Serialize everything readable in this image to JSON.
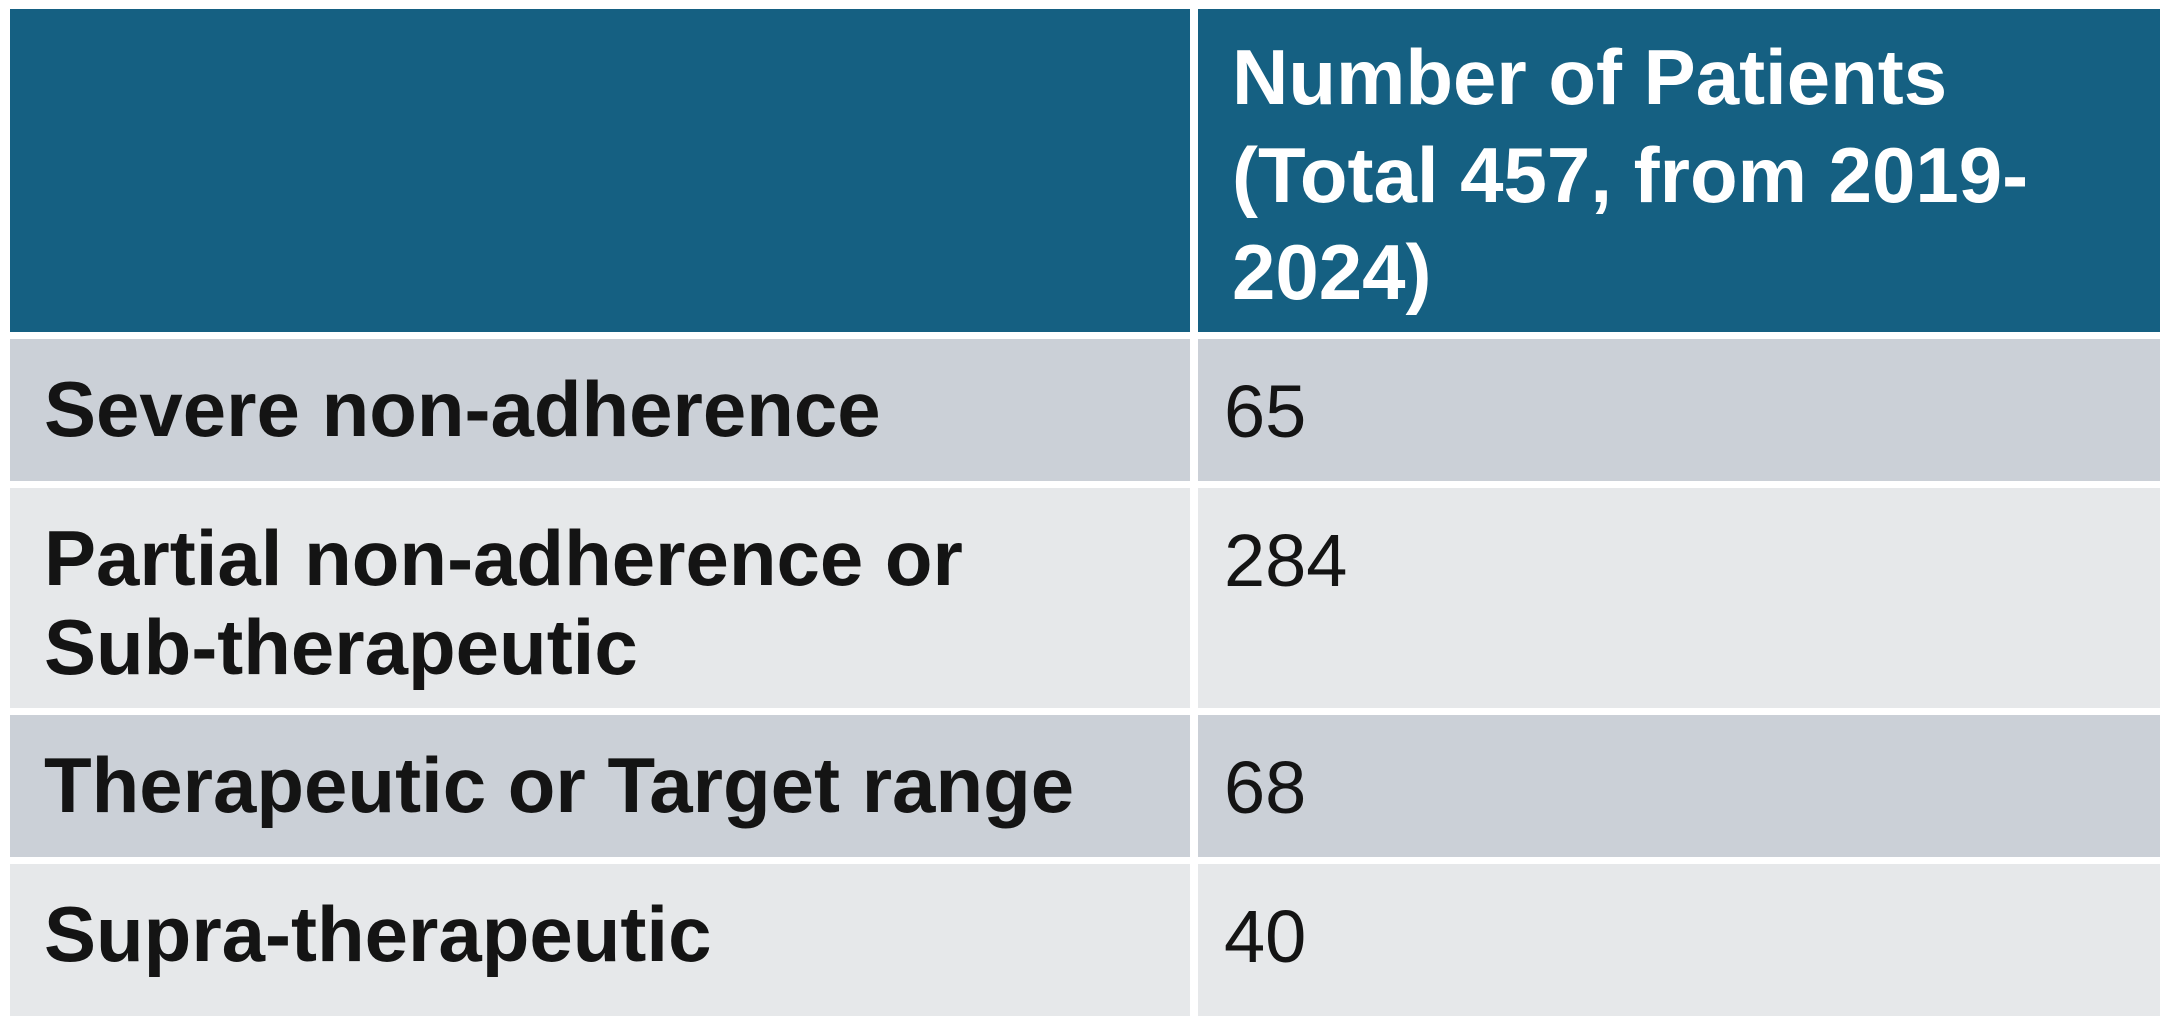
{
  "table": {
    "header_col1": "",
    "header_col2": "Number of Patients (Total 457, from 2019-2024)",
    "rows": [
      {
        "label": "Severe non-adherence",
        "value": "65"
      },
      {
        "label": "Partial non-adherence or Sub-therapeutic",
        "value": "284"
      },
      {
        "label": "Therapeutic or Target range",
        "value": "68"
      },
      {
        "label": "Supra-therapeutic",
        "value": "40"
      }
    ]
  },
  "colors": {
    "header_bg": "#156082",
    "header_text": "#FFFFFF",
    "row_dark_bg": "#CBD0D7",
    "row_light_bg": "#E6E8EA",
    "body_text": "#141414",
    "gap": "#FFFFFF"
  },
  "chart_data": {
    "type": "table",
    "title": "",
    "columns": [
      "",
      "Number of Patients (Total 457, from 2019-2024)"
    ],
    "rows": [
      [
        "Severe non-adherence",
        65
      ],
      [
        "Partial non-adherence or Sub-therapeutic",
        284
      ],
      [
        "Therapeutic or Target range",
        68
      ],
      [
        "Supra-therapeutic",
        40
      ]
    ],
    "total_patients_label": "Total 457, from 2019-2024"
  }
}
